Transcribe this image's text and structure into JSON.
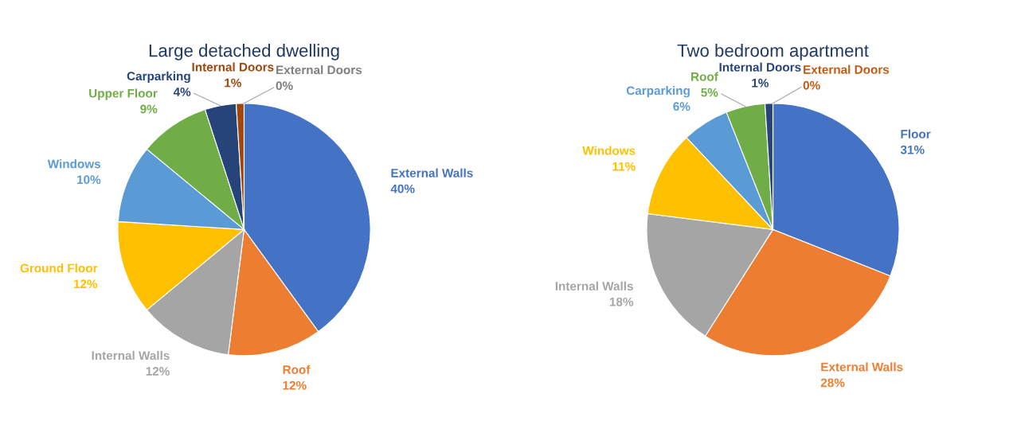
{
  "chart_data": [
    {
      "type": "pie",
      "title": "Large detached dwelling",
      "categories": [
        "External Walls",
        "Roof",
        "Internal Walls",
        "Ground Floor",
        "Windows",
        "Upper Floor",
        "Carparking",
        "Internal Doors",
        "External Doors"
      ],
      "values": [
        40,
        12,
        12,
        12,
        10,
        9,
        4,
        1,
        0
      ],
      "value_labels": [
        "40%",
        "12%",
        "12%",
        "12%",
        "10%",
        "9%",
        "4%",
        "1%",
        "0%"
      ],
      "colors": [
        "#4472c4",
        "#ed7d31",
        "#a5a5a5",
        "#ffc000",
        "#5b9bd5",
        "#70ad47",
        "#264478",
        "#9e480e",
        "#7f7f7f"
      ]
    },
    {
      "type": "pie",
      "title": "Two bedroom apartment",
      "categories": [
        "Floor",
        "External Walls",
        "Internal Walls",
        "Windows",
        "Carparking",
        "Roof",
        "Internal Doors",
        "External Doors"
      ],
      "values": [
        31,
        28,
        18,
        11,
        6,
        5,
        1,
        0
      ],
      "value_labels": [
        "31%",
        "28%",
        "18%",
        "11%",
        "6%",
        "5%",
        "1%",
        "0%"
      ],
      "colors": [
        "#4472c4",
        "#ed7d31",
        "#a5a5a5",
        "#ffc000",
        "#5b9bd5",
        "#70ad47",
        "#264478",
        "#c55a11"
      ]
    }
  ]
}
